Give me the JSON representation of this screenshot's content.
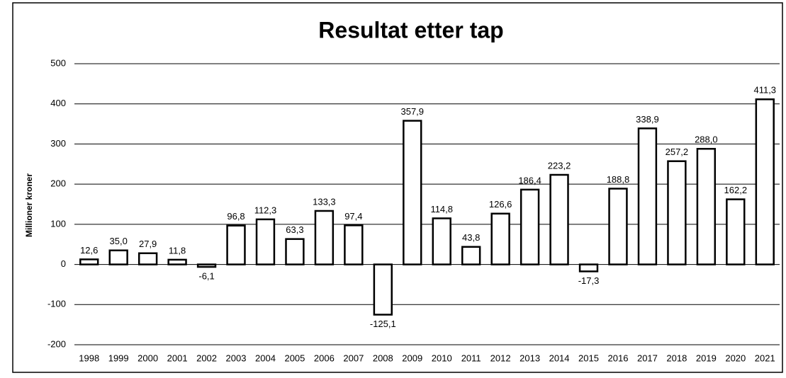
{
  "chart_data": {
    "type": "bar",
    "title": "Resultat etter tap",
    "y_label": "Millioner kroner",
    "categories": [
      "1998",
      "1999",
      "2000",
      "2001",
      "2002",
      "2003",
      "2004",
      "2005",
      "2006",
      "2007",
      "2008",
      "2009",
      "2010",
      "2011",
      "2012",
      "2013",
      "2014",
      "2015",
      "2016",
      "2017",
      "2018",
      "2019",
      "2020",
      "2021"
    ],
    "values": [
      12.6,
      35.0,
      27.9,
      11.8,
      -6.1,
      96.8,
      112.3,
      63.3,
      133.3,
      97.4,
      -125.1,
      357.9,
      114.8,
      43.8,
      126.6,
      186.4,
      223.2,
      -17.3,
      188.8,
      338.9,
      257.2,
      288.0,
      162.2,
      411.3
    ],
    "value_labels": [
      "12,6",
      "35,0",
      "27,9",
      "11,8",
      "-6,1",
      "96,8",
      "112,3",
      "63,3",
      "133,3",
      "97,4",
      "-125,1",
      "357,9",
      "114,8",
      "43,8",
      "126,6",
      "186,4",
      "223,2",
      "-17,3",
      "188,8",
      "338,9",
      "257,2",
      "288,0",
      "162,2",
      "411,3"
    ],
    "color": "#ffffff",
    "ylim": [
      -200,
      500
    ],
    "yticks": [
      -200,
      -100,
      0,
      100,
      200,
      300,
      400,
      500
    ],
    "grid": true
  }
}
